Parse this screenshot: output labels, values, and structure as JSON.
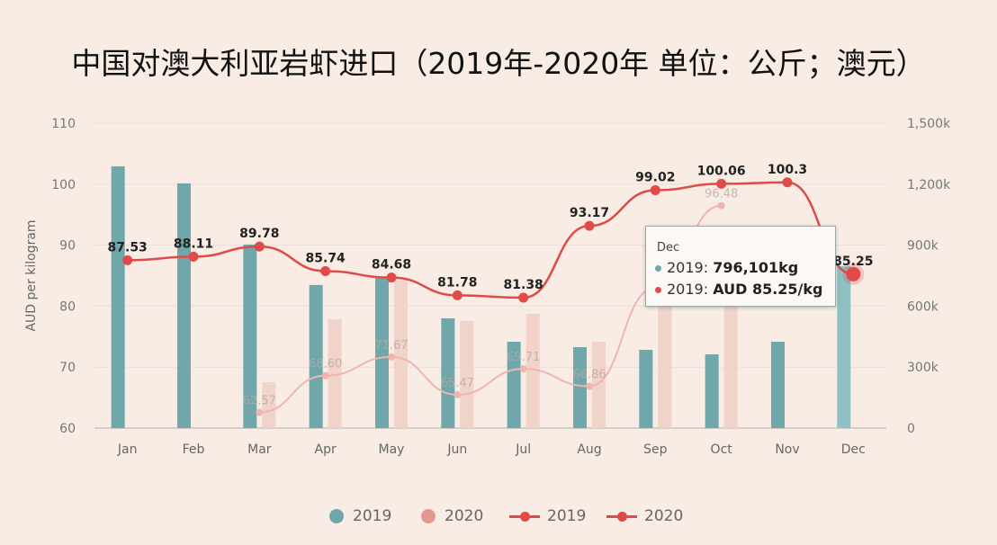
{
  "title": "中国对澳大利亚岩虾进口（2019年-2020年 单位：公斤；澳元）",
  "colors": {
    "bar_2019": "#6fa7ab",
    "bar_2020": "#f1d3c9",
    "line_2019": "#e04a48",
    "line_2020": "#f0b4b0",
    "background": "#f8ece5"
  },
  "chart_data": {
    "type": "bar+line",
    "title": "中国对澳大利亚岩虾进口（2019年-2020年 单位：公斤；澳元）",
    "categories": [
      "Jan",
      "Feb",
      "Mar",
      "Apr",
      "May",
      "Jun",
      "Jul",
      "Aug",
      "Sep",
      "Oct",
      "Nov",
      "Dec"
    ],
    "ylabel": "AUD per kilogram",
    "ylim": [
      60,
      110
    ],
    "yticks": [
      "60",
      "70",
      "80",
      "90",
      "100",
      "110"
    ],
    "y2lim": [
      0,
      1500000
    ],
    "y2ticks": [
      "0",
      "300k",
      "600k",
      "900k",
      "1,200k",
      "1,500k"
    ],
    "grid": true,
    "legend_position": "bottom",
    "series": [
      {
        "name": "2019",
        "kind": "bar",
        "axis": "right",
        "unit": "kg",
        "values": [
          1288000,
          1204000,
          903000,
          704000,
          743000,
          540000,
          425000,
          398000,
          385000,
          363000,
          425000,
          796101
        ]
      },
      {
        "name": "2020",
        "kind": "bar",
        "axis": "right",
        "unit": "kg",
        "values": [
          null,
          null,
          226000,
          535000,
          726000,
          527000,
          562000,
          425000,
          646000,
          646000,
          null,
          null
        ]
      },
      {
        "name": "2019",
        "kind": "line",
        "axis": "left",
        "values": [
          87.53,
          88.11,
          89.78,
          85.74,
          84.68,
          81.78,
          81.38,
          93.17,
          99.02,
          100.06,
          100.3,
          85.25
        ],
        "labels": [
          "87.53",
          "88.11",
          "89.78",
          "85.74",
          "84.68",
          "81.78",
          "81.38",
          "93.17",
          "99.02",
          "100.06",
          "100.3",
          "85.25"
        ]
      },
      {
        "name": "2020",
        "kind": "line",
        "axis": "left",
        "values": [
          null,
          null,
          62.57,
          68.6,
          71.67,
          65.47,
          69.71,
          66.86,
          83,
          96.48,
          null,
          null
        ],
        "labels": [
          null,
          null,
          "62.57",
          "68.60",
          "71.67",
          "65.47",
          "69.71",
          "66.86",
          "83",
          "96.48",
          null,
          null
        ]
      }
    ]
  },
  "tooltip": {
    "header": "Dec",
    "row1_series": "2019: ",
    "row1_value": "796,101kg",
    "row2_series": "2019: ",
    "row2_value": "AUD 85.25/kg"
  },
  "legend": [
    {
      "label": "2019",
      "kind": "bar"
    },
    {
      "label": "2020",
      "kind": "bar"
    },
    {
      "label": "2019",
      "kind": "line"
    },
    {
      "label": "2020",
      "kind": "line"
    }
  ]
}
